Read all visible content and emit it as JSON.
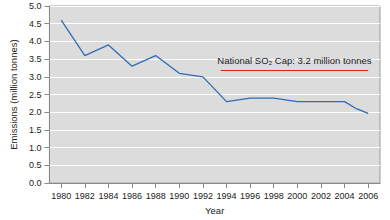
{
  "chart_data": {
    "type": "line",
    "x": [
      1980,
      1982,
      1984,
      1986,
      1988,
      1990,
      1992,
      1994,
      1996,
      1998,
      2000,
      2002,
      2004,
      2005,
      2006
    ],
    "values": [
      4.6,
      3.6,
      3.9,
      3.3,
      3.6,
      3.1,
      3.0,
      2.3,
      2.4,
      2.4,
      2.3,
      2.3,
      2.3,
      2.1,
      1.97
    ],
    "color": "#2f6db5",
    "xlabel": "Year",
    "ylabel": "Emissions (million tonnes)",
    "xlim": [
      1979,
      2007
    ],
    "xticks": [
      1980,
      1984,
      1988,
      1992,
      1996,
      2000,
      2004,
      1982,
      1986,
      1990,
      1994,
      1998,
      2002,
      2006
    ],
    "ylim": [
      0,
      5
    ],
    "yticks": [
      {
        "value": 0,
        "label": "0.0"
      },
      {
        "value": 0.5,
        "label": "0.5"
      },
      {
        "value": 1,
        "label": "1.0"
      },
      {
        "value": 1.5,
        "label": "1.5"
      },
      {
        "value": 2,
        "label": "2.0"
      },
      {
        "value": 2.5,
        "label": "2.5"
      },
      {
        "value": 3,
        "label": "3.0"
      },
      {
        "value": 3.5,
        "label": "3.5"
      },
      {
        "value": 4,
        "label": "4.0"
      },
      {
        "value": 4.5,
        "label": "4.5"
      },
      {
        "value": 5,
        "label": "5.0"
      }
    ],
    "grid": true,
    "annotations": [
      {
        "text": "National SO₂ Cap: 3.2 million tonnes",
        "value": 3.2,
        "x": [
          1993.5,
          2006
        ],
        "color": "#e0201b"
      }
    ]
  }
}
